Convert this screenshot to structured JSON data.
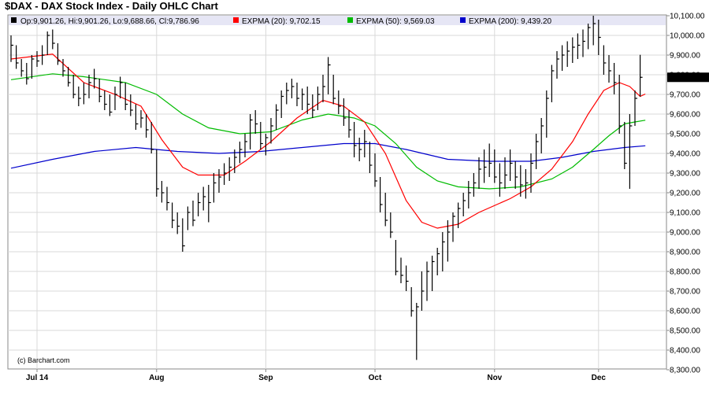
{
  "chart_data": {
    "type": "ohlc",
    "title": "$DAX - DAX Stock Index - Daily OHLC Chart",
    "credit": "(c) Barchart.com",
    "legend": {
      "ohlc": "Op:9,901.26, Hi:9,901.26, Lo:9,688.66, Cl:9,786.96",
      "ema20": "EXPMA (20): 9,702.15",
      "ema50": "EXPMA (50): 9,569.03",
      "ema200": "EXPMA (200): 9,439.20"
    },
    "colors": {
      "legend_bg": "#e6e6f5",
      "grid": "#d8d8d8",
      "bars": "#000000",
      "ema20": "#ff0000",
      "ema50": "#00bb00",
      "ema200": "#0000cc",
      "price_tag_bg": "#000000",
      "price_tag_text": "#ffffff"
    },
    "last_price_label": "9,786.96",
    "last_price": 9786.96,
    "ylim": [
      8300,
      10100
    ],
    "y_ticks": [
      8300,
      8400,
      8500,
      8600,
      8700,
      8800,
      8900,
      9000,
      9100,
      9200,
      9300,
      9400,
      9500,
      9600,
      9700,
      9800,
      9900,
      10000,
      10100
    ],
    "y_tick_labels": [
      "8,300.00",
      "8,400.00",
      "8,500.00",
      "8,600.00",
      "8,700.00",
      "8,800.00",
      "8,900.00",
      "9,000.00",
      "9,100.00",
      "9,200.00",
      "9,300.00",
      "9,400.00",
      "9,500.00",
      "9,600.00",
      "9,700.00",
      "9,800.00",
      "9,900.00",
      "10,000.00",
      "10,100.00"
    ],
    "x_labels": [
      {
        "label": "Jul 14",
        "index": 5
      },
      {
        "label": "Aug",
        "index": 28
      },
      {
        "label": "Sep",
        "index": 49
      },
      {
        "label": "Oct",
        "index": 70
      },
      {
        "label": "Nov",
        "index": 93
      },
      {
        "label": "Dec",
        "index": 113
      }
    ],
    "bars": [
      [
        10000,
        9865,
        9950
      ],
      [
        9950,
        9830,
        9860
      ],
      [
        9880,
        9790,
        9820
      ],
      [
        9860,
        9750,
        9780
      ],
      [
        9900,
        9780,
        9880
      ],
      [
        9920,
        9840,
        9870
      ],
      [
        9950,
        9850,
        9900
      ],
      [
        10020,
        9900,
        10000
      ],
      [
        10030,
        9930,
        9960
      ],
      [
        9960,
        9850,
        9870
      ],
      [
        9880,
        9790,
        9820
      ],
      [
        9840,
        9740,
        9760
      ],
      [
        9800,
        9680,
        9700
      ],
      [
        9740,
        9640,
        9680
      ],
      [
        9760,
        9650,
        9700
      ],
      [
        9800,
        9680,
        9760
      ],
      [
        9830,
        9730,
        9780
      ],
      [
        9780,
        9660,
        9690
      ],
      [
        9720,
        9620,
        9650
      ],
      [
        9700,
        9590,
        9610
      ],
      [
        9740,
        9620,
        9700
      ],
      [
        9790,
        9680,
        9760
      ],
      [
        9760,
        9620,
        9650
      ],
      [
        9700,
        9590,
        9620
      ],
      [
        9650,
        9520,
        9550
      ],
      [
        9620,
        9530,
        9580
      ],
      [
        9600,
        9480,
        9520
      ],
      [
        9560,
        9400,
        9420
      ],
      [
        9420,
        9180,
        9220
      ],
      [
        9260,
        9150,
        9200
      ],
      [
        9230,
        9110,
        9150
      ],
      [
        9150,
        9020,
        9060
      ],
      [
        9100,
        8990,
        9030
      ],
      [
        9070,
        8900,
        8930
      ],
      [
        9130,
        9010,
        9100
      ],
      [
        9160,
        9030,
        9060
      ],
      [
        9200,
        9080,
        9150
      ],
      [
        9230,
        9110,
        9180
      ],
      [
        9240,
        9050,
        9150
      ],
      [
        9300,
        9150,
        9250
      ],
      [
        9320,
        9200,
        9280
      ],
      [
        9350,
        9240,
        9300
      ],
      [
        9380,
        9260,
        9330
      ],
      [
        9420,
        9300,
        9380
      ],
      [
        9460,
        9350,
        9420
      ],
      [
        9500,
        9380,
        9460
      ],
      [
        9600,
        9420,
        9570
      ],
      [
        9620,
        9500,
        9550
      ],
      [
        9560,
        9420,
        9450
      ],
      [
        9500,
        9390,
        9480
      ],
      [
        9580,
        9450,
        9540
      ],
      [
        9650,
        9520,
        9620
      ],
      [
        9720,
        9580,
        9690
      ],
      [
        9760,
        9650,
        9720
      ],
      [
        9780,
        9680,
        9740
      ],
      [
        9760,
        9640,
        9680
      ],
      [
        9730,
        9620,
        9700
      ],
      [
        9740,
        9600,
        9650
      ],
      [
        9700,
        9580,
        9620
      ],
      [
        9740,
        9620,
        9700
      ],
      [
        9800,
        9660,
        9740
      ],
      [
        9890,
        9700,
        9850
      ],
      [
        9800,
        9650,
        9680
      ],
      [
        9720,
        9600,
        9640
      ],
      [
        9680,
        9540,
        9580
      ],
      [
        9620,
        9480,
        9520
      ],
      [
        9560,
        9380,
        9440
      ],
      [
        9480,
        9360,
        9420
      ],
      [
        9520,
        9380,
        9460
      ],
      [
        9460,
        9300,
        9340
      ],
      [
        9400,
        9230,
        9260
      ],
      [
        9280,
        9100,
        9140
      ],
      [
        9200,
        9030,
        9060
      ],
      [
        9100,
        8970,
        9000
      ],
      [
        8960,
        8780,
        8800
      ],
      [
        8870,
        8740,
        8780
      ],
      [
        8830,
        8700,
        8750
      ],
      [
        8720,
        8570,
        8600
      ],
      [
        8640,
        8350,
        8620
      ],
      [
        8800,
        8600,
        8700
      ],
      [
        8850,
        8650,
        8800
      ],
      [
        8880,
        8700,
        8850
      ],
      [
        8920,
        8780,
        8890
      ],
      [
        9000,
        8800,
        8950
      ],
      [
        9060,
        8850,
        9000
      ],
      [
        9100,
        8950,
        9080
      ],
      [
        9150,
        9020,
        9120
      ],
      [
        9200,
        9080,
        9160
      ],
      [
        9260,
        9120,
        9200
      ],
      [
        9300,
        9180,
        9250
      ],
      [
        9380,
        9220,
        9320
      ],
      [
        9420,
        9250,
        9330
      ],
      [
        9450,
        9280,
        9350
      ],
      [
        9420,
        9250,
        9280
      ],
      [
        9350,
        9180,
        9250
      ],
      [
        9380,
        9220,
        9290
      ],
      [
        9420,
        9260,
        9350
      ],
      [
        9360,
        9220,
        9280
      ],
      [
        9340,
        9180,
        9240
      ],
      [
        9320,
        9170,
        9250
      ],
      [
        9400,
        9200,
        9350
      ],
      [
        9500,
        9320,
        9460
      ],
      [
        9580,
        9400,
        9540
      ],
      [
        9720,
        9480,
        9680
      ],
      [
        9850,
        9660,
        9820
      ],
      [
        9920,
        9780,
        9880
      ],
      [
        9950,
        9820,
        9900
      ],
      [
        9970,
        9840,
        9920
      ],
      [
        9990,
        9860,
        9940
      ],
      [
        10010,
        9880,
        9950
      ],
      [
        10030,
        9890,
        9970
      ],
      [
        10060,
        9930,
        10040
      ],
      [
        10100,
        9950,
        10060
      ],
      [
        10080,
        9900,
        9990
      ],
      [
        9950,
        9800,
        9860
      ],
      [
        9900,
        9760,
        9820
      ],
      [
        9860,
        9700,
        9760
      ],
      [
        9800,
        9500,
        9540
      ],
      [
        9560,
        9320,
        9350
      ],
      [
        9600,
        9220,
        9540
      ],
      [
        9720,
        9540,
        9680
      ],
      [
        9901.26,
        9688.66,
        9786.96
      ]
    ],
    "ema20": [
      [
        0,
        9880
      ],
      [
        8,
        9905
      ],
      [
        14,
        9760
      ],
      [
        20,
        9700
      ],
      [
        25,
        9640
      ],
      [
        29,
        9470
      ],
      [
        33,
        9330
      ],
      [
        36,
        9290
      ],
      [
        41,
        9290
      ],
      [
        45,
        9360
      ],
      [
        50,
        9460
      ],
      [
        55,
        9580
      ],
      [
        60,
        9670
      ],
      [
        64,
        9640
      ],
      [
        68,
        9560
      ],
      [
        72,
        9400
      ],
      [
        76,
        9160
      ],
      [
        79,
        9050
      ],
      [
        82,
        9020
      ],
      [
        86,
        9040
      ],
      [
        90,
        9100
      ],
      [
        96,
        9170
      ],
      [
        100,
        9230
      ],
      [
        104,
        9320
      ],
      [
        108,
        9460
      ],
      [
        111,
        9600
      ],
      [
        114,
        9720
      ],
      [
        117,
        9760
      ],
      [
        119,
        9740
      ],
      [
        121,
        9690
      ],
      [
        122,
        9702
      ]
    ],
    "ema50": [
      [
        0,
        9775
      ],
      [
        8,
        9805
      ],
      [
        14,
        9790
      ],
      [
        22,
        9760
      ],
      [
        28,
        9700
      ],
      [
        33,
        9600
      ],
      [
        38,
        9530
      ],
      [
        44,
        9500
      ],
      [
        50,
        9510
      ],
      [
        56,
        9570
      ],
      [
        61,
        9600
      ],
      [
        66,
        9580
      ],
      [
        70,
        9540
      ],
      [
        74,
        9450
      ],
      [
        78,
        9330
      ],
      [
        82,
        9260
      ],
      [
        86,
        9230
      ],
      [
        92,
        9220
      ],
      [
        98,
        9230
      ],
      [
        104,
        9270
      ],
      [
        108,
        9330
      ],
      [
        112,
        9420
      ],
      [
        115,
        9490
      ],
      [
        118,
        9550
      ],
      [
        120,
        9560
      ],
      [
        122,
        9569
      ]
    ],
    "ema200": [
      [
        0,
        9325
      ],
      [
        8,
        9370
      ],
      [
        16,
        9410
      ],
      [
        24,
        9430
      ],
      [
        32,
        9410
      ],
      [
        40,
        9400
      ],
      [
        48,
        9410
      ],
      [
        56,
        9430
      ],
      [
        64,
        9450
      ],
      [
        70,
        9450
      ],
      [
        76,
        9420
      ],
      [
        84,
        9370
      ],
      [
        92,
        9360
      ],
      [
        100,
        9360
      ],
      [
        106,
        9380
      ],
      [
        112,
        9410
      ],
      [
        118,
        9430
      ],
      [
        122,
        9439
      ]
    ]
  }
}
